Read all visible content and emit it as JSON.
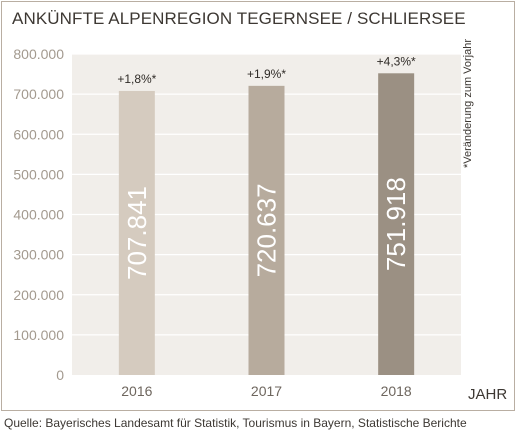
{
  "chart_data": {
    "type": "bar",
    "title": "ANKÜNFTE ALPENREGION TEGERNSEE / SCHLIERSEE",
    "xlabel": "JAHR",
    "ylabel": "",
    "categories": [
      "2016",
      "2017",
      "2018"
    ],
    "values": [
      707841,
      720637,
      751918
    ],
    "value_labels": [
      "707.841",
      "720.637",
      "751.918"
    ],
    "change_labels": [
      "+1,8%*",
      "+1,9%*",
      "+4,3%*"
    ],
    "bar_colors": [
      "#d5cbbf",
      "#b7ab9d",
      "#9b9083"
    ],
    "ylim": [
      0,
      800000
    ],
    "yticks": [
      0,
      100000,
      200000,
      300000,
      400000,
      500000,
      600000,
      700000,
      800000
    ],
    "ytick_labels": [
      "0",
      "100.000",
      "200.000",
      "300.000",
      "400.000",
      "500.000",
      "600.000",
      "700.000",
      "800.000"
    ],
    "grid": true,
    "note": "*Veränderung zum Vorjahr",
    "source": "Quelle: Bayerisches Landesamt für Statistik, Tourismus in Bayern, Statistische Berichte"
  },
  "colors": {
    "plot_background": "#f1eeea",
    "gridline": "#ffffff",
    "frame": "#b9aea2"
  }
}
